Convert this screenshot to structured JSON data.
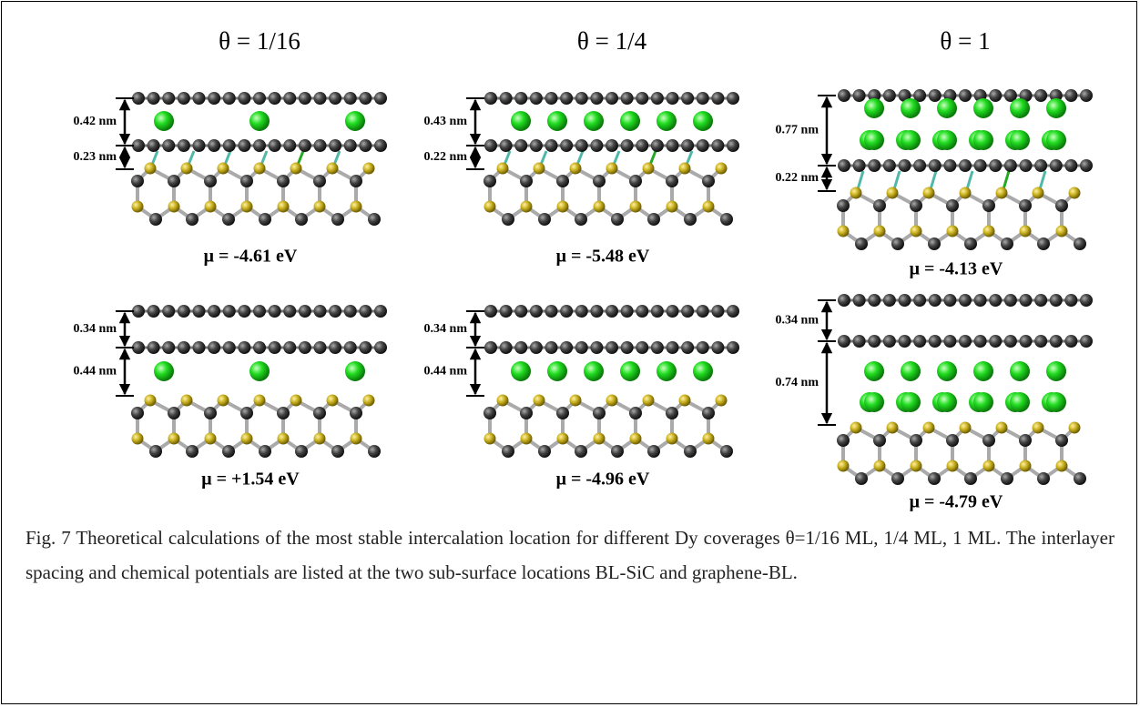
{
  "columns": [
    "θ = 1/16",
    "θ = 1/4",
    "θ = 1"
  ],
  "panels": [
    {
      "spacings": [
        "0.42 nm",
        "0.23 nm"
      ],
      "potential": "μ = -4.61 eV"
    },
    {
      "spacings": [
        "0.43 nm",
        "0.22 nm"
      ],
      "potential": "μ = -5.48 eV"
    },
    {
      "spacings": [
        "0.77 nm",
        "0.22 nm"
      ],
      "potential": "μ = -4.13 eV"
    },
    {
      "spacings": [
        "0.34 nm",
        "0.44 nm"
      ],
      "potential": "μ = +1.54 eV"
    },
    {
      "spacings": [
        "0.34 nm",
        "0.44 nm"
      ],
      "potential": "μ = -4.96 eV"
    },
    {
      "spacings": [
        "0.34 nm",
        "0.74 nm"
      ],
      "potential": "μ = -4.79 eV"
    }
  ],
  "caption": "Fig. 7 Theoretical calculations of the most stable intercalation location for different Dy coverages θ=1/16 ML, 1/4 ML, 1 ML. The interlayer spacing and chemical potentials are listed at the two sub-surface locations BL-SiC and graphene-BL."
}
